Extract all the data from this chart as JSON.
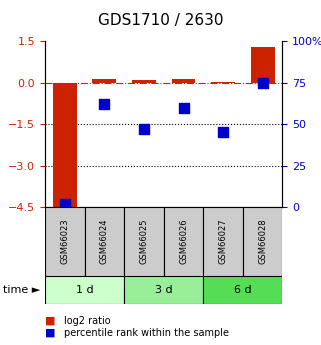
{
  "title": "GDS1710 / 2630",
  "samples": [
    "GSM66023",
    "GSM66024",
    "GSM66025",
    "GSM66026",
    "GSM66027",
    "GSM66028"
  ],
  "log2_ratio": [
    -4.5,
    0.15,
    0.1,
    0.15,
    0.02,
    1.3
  ],
  "percentile_rank": [
    2,
    62,
    47,
    60,
    45,
    75
  ],
  "ylim_left": [
    -4.5,
    1.5
  ],
  "ylim_right": [
    0,
    100
  ],
  "yticks_left": [
    1.5,
    0,
    -1.5,
    -3,
    -4.5
  ],
  "yticks_right": [
    100,
    75,
    50,
    25,
    0
  ],
  "hlines_dotted": [
    -1.5,
    -3
  ],
  "hline_dash_dot": 0,
  "time_groups": [
    {
      "label": "1 d",
      "start": 0,
      "end": 2,
      "color": "#ccffcc"
    },
    {
      "label": "3 d",
      "start": 2,
      "end": 4,
      "color": "#99ee99"
    },
    {
      "label": "6 d",
      "start": 4,
      "end": 6,
      "color": "#55dd55"
    }
  ],
  "bar_color": "#cc2200",
  "scatter_color": "#0000cc",
  "bar_width": 0.6,
  "scatter_size": 60,
  "bg_color": "#ffffff",
  "sample_box_color": "#cccccc",
  "legend_items": [
    {
      "color": "#cc2200",
      "label": "log2 ratio"
    },
    {
      "color": "#0000cc",
      "label": "percentile rank within the sample"
    }
  ]
}
